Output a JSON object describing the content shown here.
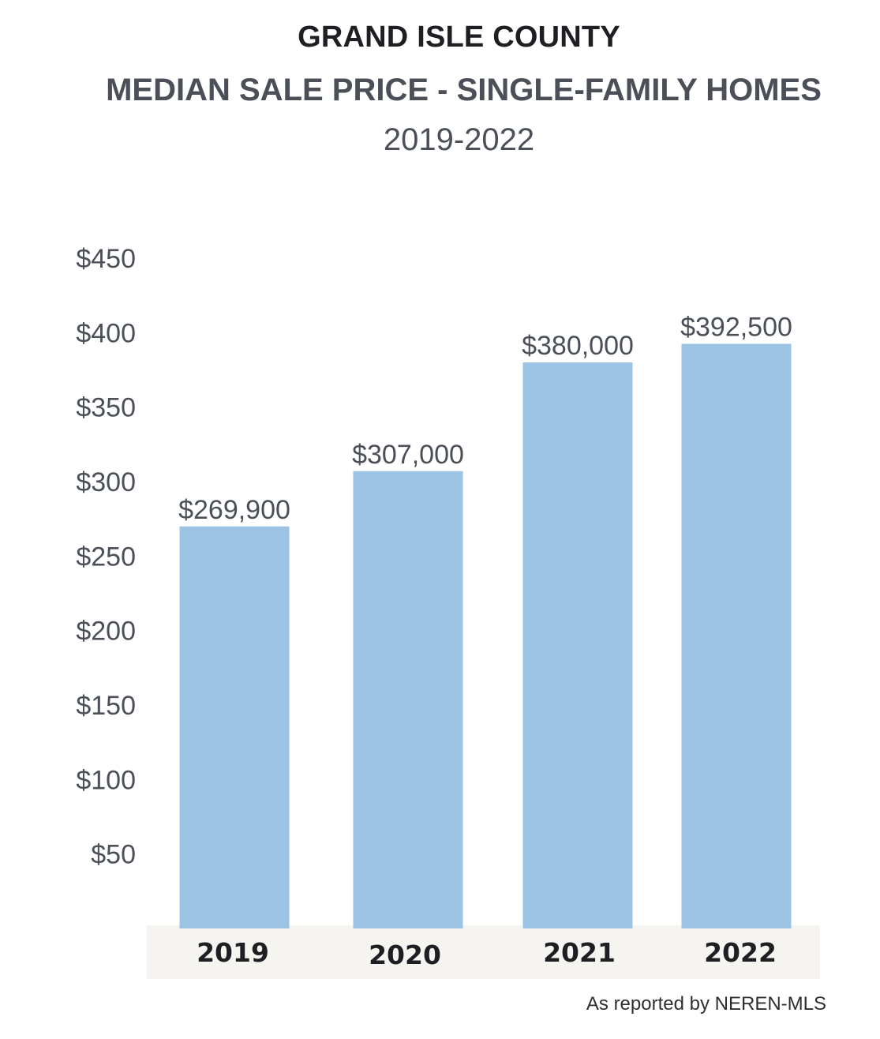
{
  "header": {
    "title": "GRAND ISLE COUNTY",
    "subtitle": "MEDIAN SALE PRICE - SINGLE-FAMILY HOMES",
    "period": "2019-2022"
  },
  "source_note": "As reported by NEREN-MLS",
  "colors": {
    "bar": "#9dc3e4",
    "axis_band": "#f5f4f1",
    "tick_text": "#4a4f58",
    "category_text": "#1e1f22",
    "value_label_text": "#4a4f58"
  },
  "chart_data": {
    "type": "bar",
    "title": "GRAND ISLE COUNTY",
    "subtitle": "MEDIAN SALE PRICE - SINGLE-FAMILY HOMES",
    "categories": [
      "2019",
      "2020",
      "2021",
      "2022"
    ],
    "values": [
      269900,
      307000,
      380000,
      392500
    ],
    "value_labels": [
      "$269,900",
      "$307,000",
      "$380,000",
      "$392,500"
    ],
    "ylim": [
      0,
      450000
    ],
    "y_ticks": [
      50,
      100,
      150,
      200,
      250,
      300,
      350,
      400,
      450
    ],
    "y_tick_labels": [
      "$50",
      "$100",
      "$150",
      "$200",
      "$250",
      "$300",
      "$350",
      "$400",
      "$450"
    ],
    "xlabel": "",
    "ylabel": "",
    "grid": false,
    "legend": "none"
  }
}
